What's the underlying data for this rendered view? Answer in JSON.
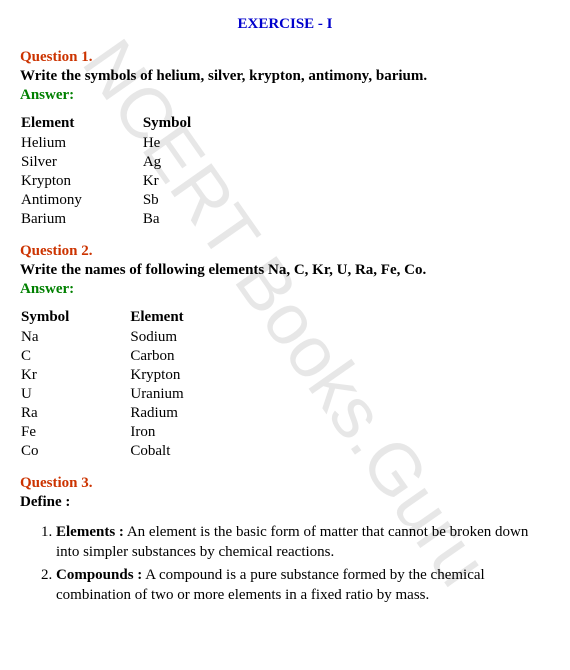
{
  "watermark": "NCERT Books.Guru",
  "exercise_title": "EXERCISE - I",
  "q1": {
    "label": "Question 1.",
    "text": "Write the symbols of helium, silver, krypton, antimony, barium.",
    "answer_label": "Answer:",
    "table": {
      "col1_header": "Element",
      "col2_header": "Symbol",
      "rows": [
        {
          "element": "Helium",
          "symbol": "He"
        },
        {
          "element": "Silver",
          "symbol": "Ag"
        },
        {
          "element": "Krypton",
          "symbol": "Kr"
        },
        {
          "element": "Antimony",
          "symbol": "Sb"
        },
        {
          "element": "Barium",
          "symbol": "Ba"
        }
      ]
    }
  },
  "q2": {
    "label": "Question 2.",
    "text": "Write the names of following elements Na, C, Kr, U, Ra, Fe, Co.",
    "answer_label": "Answer:",
    "table": {
      "col1_header": "Symbol",
      "col2_header": "Element",
      "rows": [
        {
          "symbol": "Na",
          "element": "Sodium"
        },
        {
          "symbol": "C",
          "element": "Carbon"
        },
        {
          "symbol": "Kr",
          "element": "Krypton"
        },
        {
          "symbol": "U",
          "element": "Uranium"
        },
        {
          "symbol": "Ra",
          "element": "Radium"
        },
        {
          "symbol": "Fe",
          "element": "Iron"
        },
        {
          "symbol": "Co",
          "element": "Cobalt"
        }
      ]
    }
  },
  "q3": {
    "label": "Question 3.",
    "text": "Define :",
    "definitions": [
      {
        "term": "Elements :",
        "def": " An element is the basic form of matter that cannot be broken down into simpler substances by chemical reactions."
      },
      {
        "term": "Compounds :",
        "def": " A compound is a pure substance formed by the chemical combination of two or more elements in a fixed ratio by mass."
      }
    ]
  }
}
